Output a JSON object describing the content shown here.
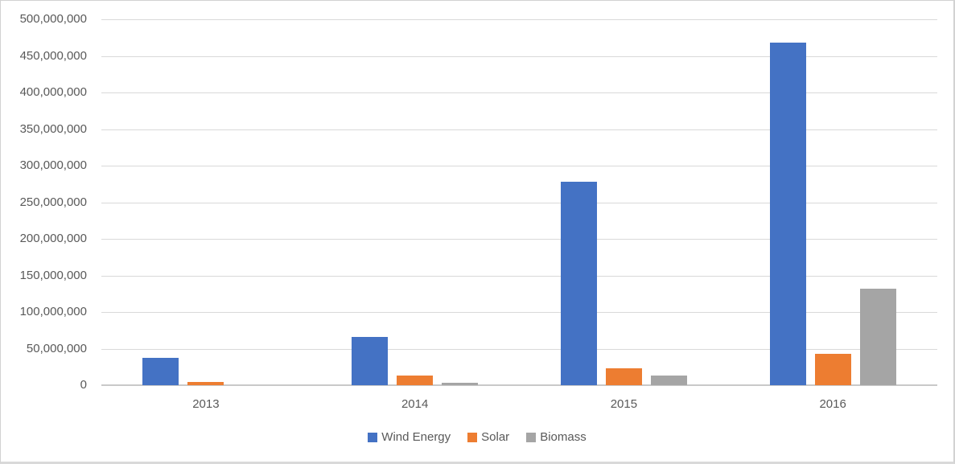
{
  "chart_data": {
    "type": "bar",
    "title": "",
    "xlabel": "",
    "ylabel": "",
    "categories": [
      "2013",
      "2014",
      "2015",
      "2016"
    ],
    "series": [
      {
        "name": "Wind Energy",
        "color": "#4472C4",
        "values": [
          37000000,
          66000000,
          278000000,
          468000000
        ]
      },
      {
        "name": "Solar",
        "color": "#ED7D31",
        "values": [
          4000000,
          13000000,
          23000000,
          43000000
        ]
      },
      {
        "name": "Biomass",
        "color": "#A5A5A5",
        "values": [
          0,
          3500000,
          13000000,
          132000000
        ]
      }
    ],
    "ylim": [
      0,
      500000000
    ],
    "ytick_step": 50000000,
    "ytick_labels": [
      "0",
      "50,000,000",
      "100,000,000",
      "150,000,000",
      "200,000,000",
      "250,000,000",
      "300,000,000",
      "350,000,000",
      "400,000,000",
      "450,000,000",
      "500,000,000"
    ],
    "grid": true,
    "gridline_color": "#D9D9D9",
    "axis_line_color": "#C9C9C9",
    "axis_text_color": "#595959",
    "plot_background": "#FFFFFF",
    "legend_position": "bottom",
    "legend": [
      "Wind Energy",
      "Solar",
      "Biomass"
    ]
  }
}
